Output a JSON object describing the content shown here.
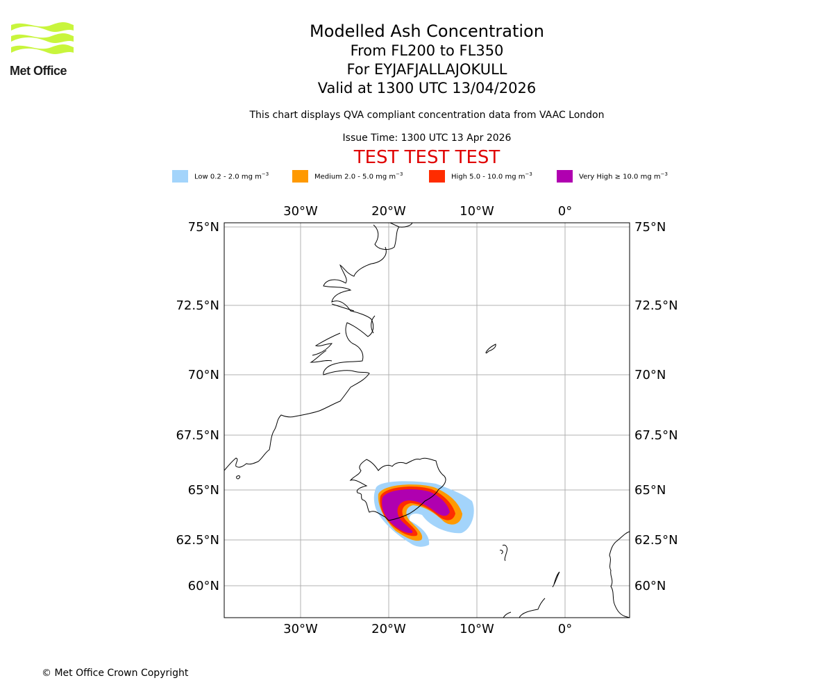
{
  "logo": {
    "text": "Met Office",
    "color": "#c8f53c"
  },
  "titles": {
    "main": "Modelled Ash Concentration",
    "levels": "From FL200 to FL350",
    "volcano": "For EYJAFJALLAJOKULL",
    "valid": "Valid at 1300 UTC 13/04/2026"
  },
  "subtitle": "This chart displays QVA compliant concentration data from VAAC London",
  "issue_time": "Issue Time: 1300 UTC 13 Apr 2026",
  "test_banner": "TEST TEST TEST",
  "legend": [
    {
      "label": "Low 0.2 - 2.0 mg m",
      "exp": "−3",
      "color": "#a3d4fb"
    },
    {
      "label": "Medium 2.0 - 5.0 mg m",
      "exp": "−3",
      "color": "#ff9900"
    },
    {
      "label": "High 5.0 - 10.0 mg m",
      "exp": "−3",
      "color": "#ff2c00"
    },
    {
      "label": "Very High ≥ 10.0 mg m",
      "exp": "−3",
      "color": "#b000b0"
    }
  ],
  "map": {
    "lon_ticks": [
      "30°W",
      "20°W",
      "10°W",
      "0°"
    ],
    "lat_ticks": [
      "75°N",
      "72.5°N",
      "70°N",
      "67.5°N",
      "65°N",
      "62.5°N",
      "60°N"
    ]
  },
  "copyright": "© Met Office Crown Copyright"
}
